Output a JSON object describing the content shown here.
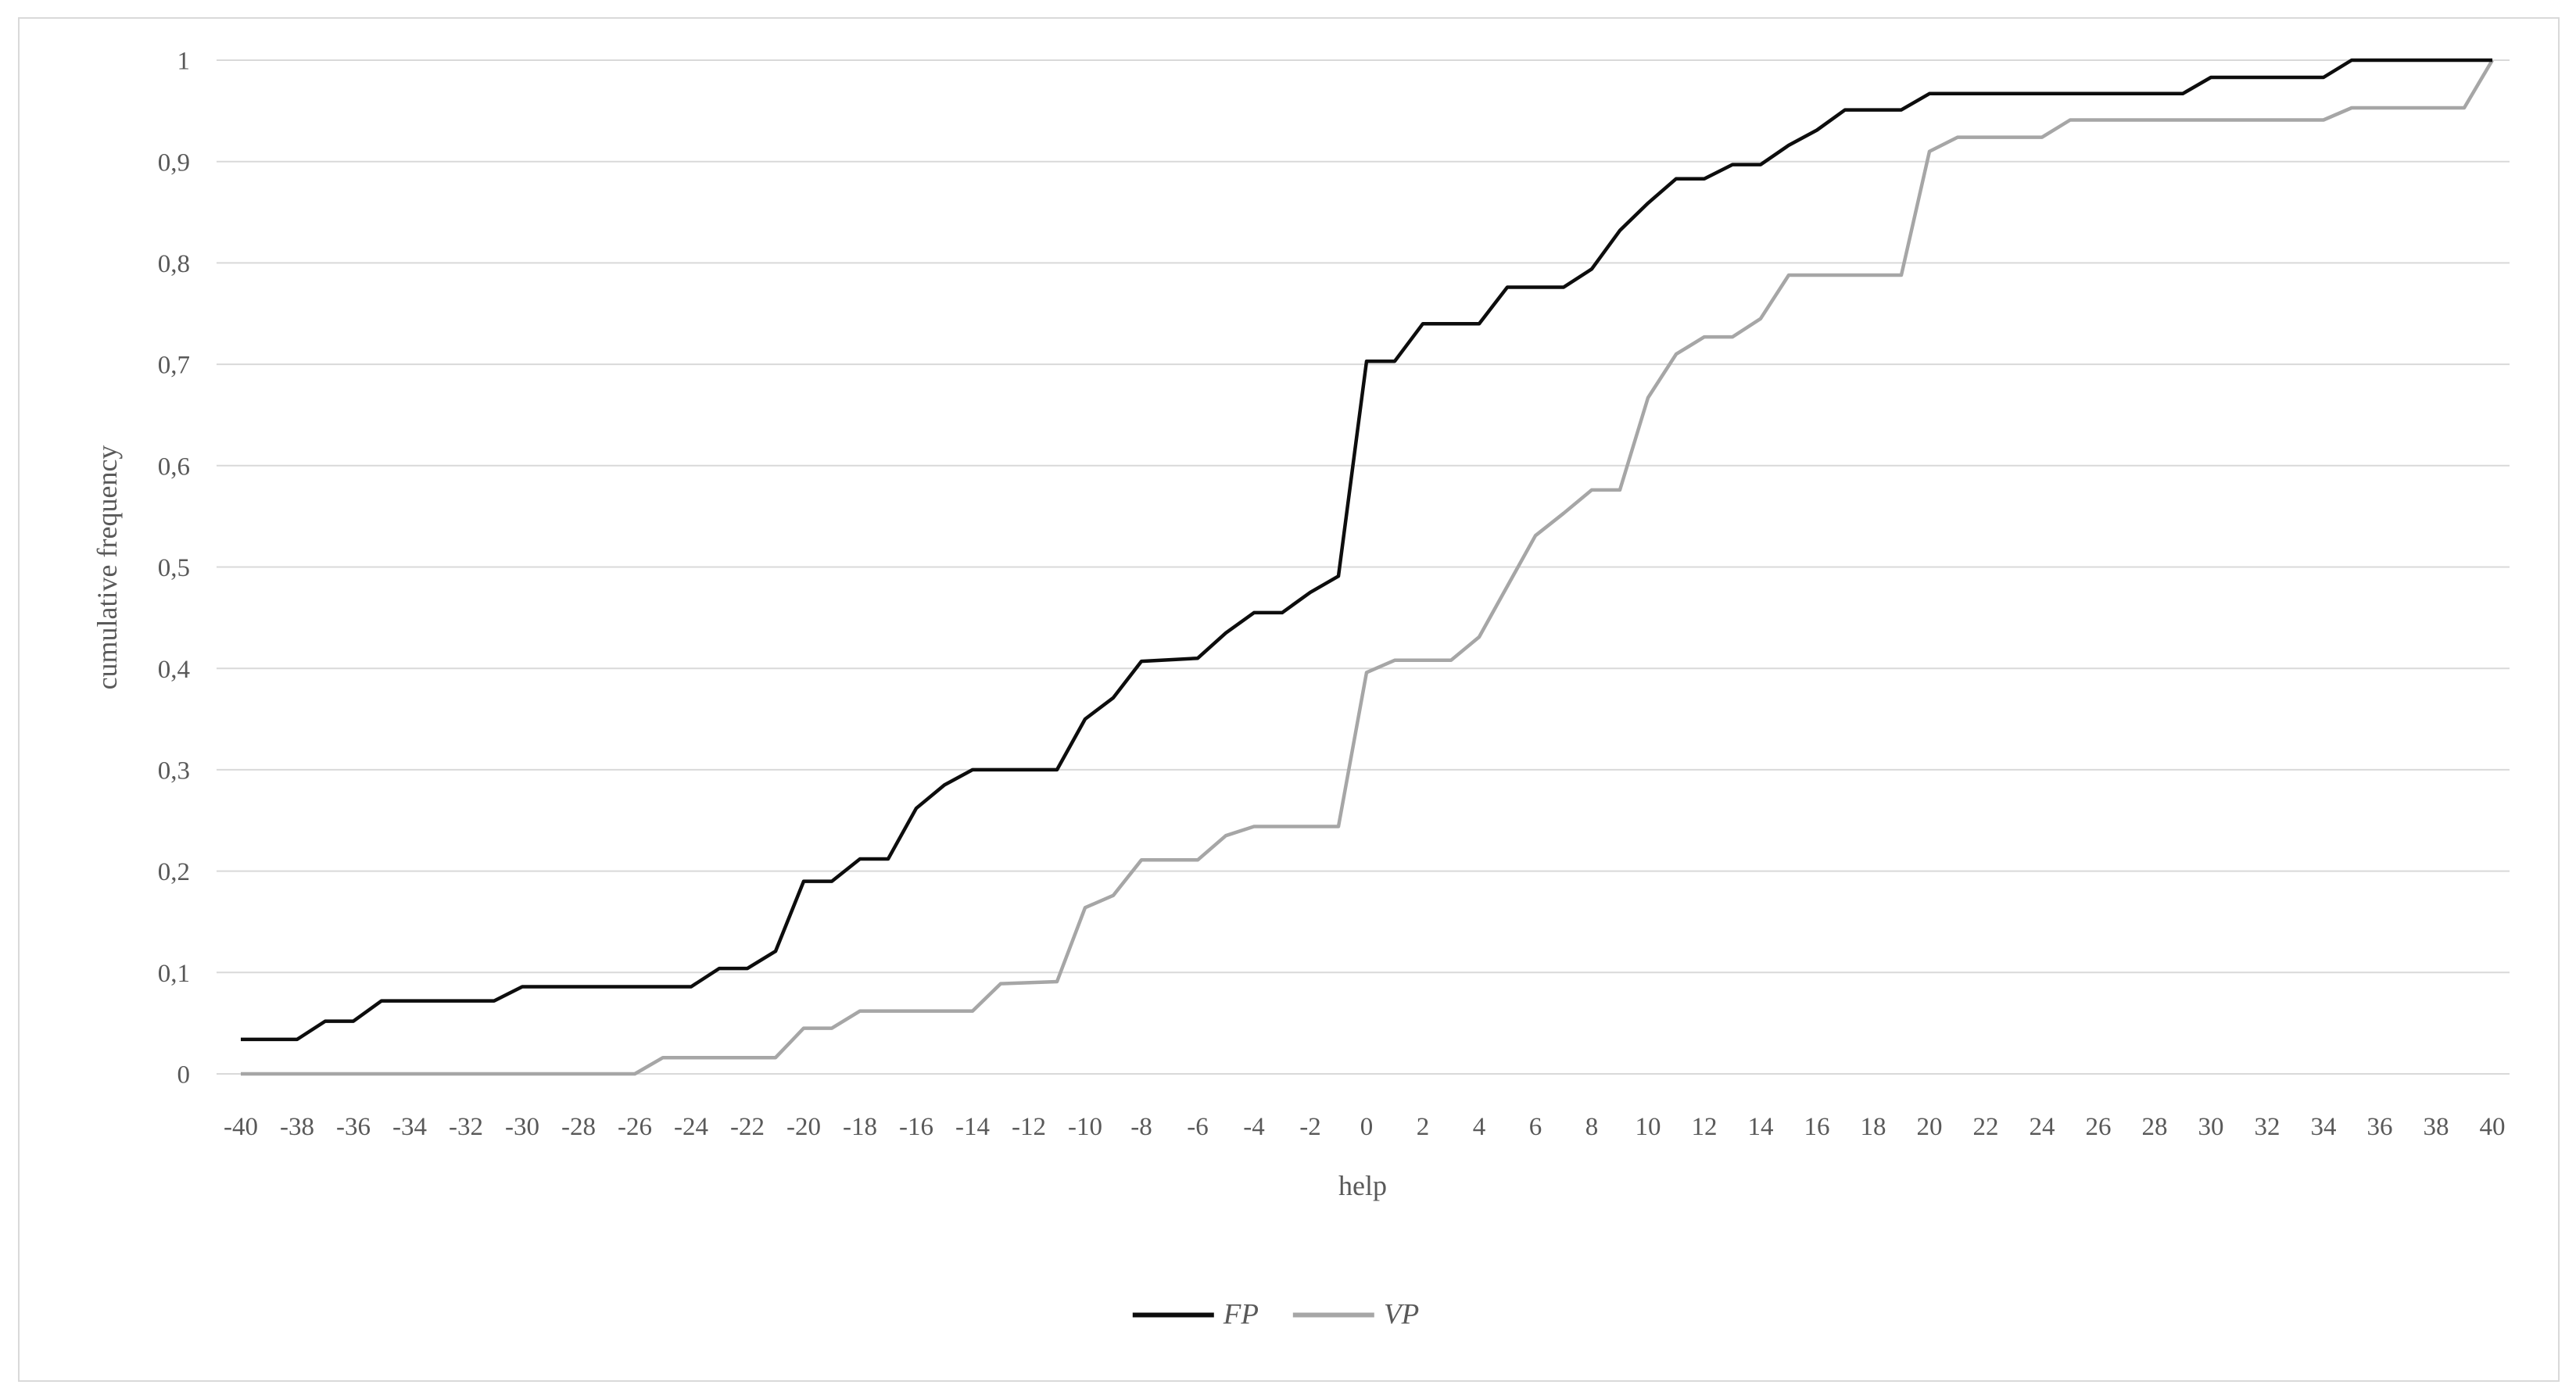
{
  "chart_data": {
    "type": "line",
    "title": "",
    "xlabel": "help",
    "ylabel": "cumulative frequency",
    "xlim": [
      -40,
      40
    ],
    "ylim": [
      0,
      1
    ],
    "grid": "horizontal-only",
    "legend_position": "bottom-center",
    "x_tick_step": 2,
    "x_tick_labels": [
      "-40",
      "-38",
      "-36",
      "-34",
      "-32",
      "-30",
      "-28",
      "-26",
      "-24",
      "-22",
      "-20",
      "-18",
      "-16",
      "-14",
      "-12",
      "-10",
      "-8",
      "-6",
      "-4",
      "-2",
      "0",
      "2",
      "4",
      "6",
      "8",
      "10",
      "12",
      "14",
      "16",
      "18",
      "20",
      "22",
      "24",
      "26",
      "28",
      "30",
      "32",
      "34",
      "36",
      "38",
      "40"
    ],
    "y_tick_labels": [
      "0",
      "0,1",
      "0,2",
      "0,3",
      "0,4",
      "0,5",
      "0,6",
      "0,7",
      "0,8",
      "0,9",
      "1"
    ],
    "colors": {
      "grid": "#d9d9d9",
      "frame": "#d9d9d9",
      "tick_text": "#595959",
      "fp": "#0d0d0d",
      "vp": "#a6a6a6"
    },
    "series": [
      {
        "name": "FP",
        "color": "#0d0d0d",
        "points": [
          [
            -40,
            0.034
          ],
          [
            -38,
            0.034
          ],
          [
            -37,
            0.052
          ],
          [
            -36,
            0.052
          ],
          [
            -35,
            0.072
          ],
          [
            -31,
            0.072
          ],
          [
            -30,
            0.086
          ],
          [
            -24,
            0.086
          ],
          [
            -23,
            0.104
          ],
          [
            -22,
            0.104
          ],
          [
            -21,
            0.121
          ],
          [
            -20,
            0.19
          ],
          [
            -19,
            0.19
          ],
          [
            -18,
            0.212
          ],
          [
            -17,
            0.212
          ],
          [
            -16,
            0.262
          ],
          [
            -15,
            0.285
          ],
          [
            -14,
            0.3
          ],
          [
            -11,
            0.3
          ],
          [
            -10,
            0.35
          ],
          [
            -9,
            0.371
          ],
          [
            -8,
            0.407
          ],
          [
            -6,
            0.41
          ],
          [
            -5,
            0.435
          ],
          [
            -4,
            0.455
          ],
          [
            -3,
            0.455
          ],
          [
            -2,
            0.475
          ],
          [
            -1,
            0.491
          ],
          [
            0,
            0.703
          ],
          [
            1,
            0.703
          ],
          [
            2,
            0.74
          ],
          [
            4,
            0.74
          ],
          [
            5,
            0.776
          ],
          [
            7,
            0.776
          ],
          [
            8,
            0.794
          ],
          [
            9,
            0.832
          ],
          [
            10,
            0.859
          ],
          [
            11,
            0.883
          ],
          [
            12,
            0.883
          ],
          [
            13,
            0.897
          ],
          [
            14,
            0.897
          ],
          [
            15,
            0.916
          ],
          [
            16,
            0.931
          ],
          [
            17,
            0.951
          ],
          [
            19,
            0.951
          ],
          [
            20,
            0.967
          ],
          [
            29,
            0.967
          ],
          [
            30,
            0.983
          ],
          [
            34,
            0.983
          ],
          [
            35,
            1
          ],
          [
            40,
            1
          ]
        ]
      },
      {
        "name": "VP",
        "color": "#a6a6a6",
        "points": [
          [
            -40,
            0
          ],
          [
            -26,
            0
          ],
          [
            -25,
            0.016
          ],
          [
            -21,
            0.016
          ],
          [
            -20,
            0.045
          ],
          [
            -19,
            0.045
          ],
          [
            -18,
            0.062
          ],
          [
            -14,
            0.062
          ],
          [
            -13,
            0.089
          ],
          [
            -11,
            0.091
          ],
          [
            -10,
            0.164
          ],
          [
            -9,
            0.176
          ],
          [
            -8,
            0.211
          ],
          [
            -6,
            0.211
          ],
          [
            -5,
            0.235
          ],
          [
            -4,
            0.244
          ],
          [
            -1,
            0.244
          ],
          [
            0,
            0.396
          ],
          [
            1,
            0.408
          ],
          [
            3,
            0.408
          ],
          [
            4,
            0.431
          ],
          [
            5,
            0.481
          ],
          [
            6,
            0.531
          ],
          [
            7,
            0.553
          ],
          [
            8,
            0.576
          ],
          [
            9,
            0.576
          ],
          [
            10,
            0.667
          ],
          [
            11,
            0.71
          ],
          [
            12,
            0.727
          ],
          [
            13,
            0.727
          ],
          [
            14,
            0.745
          ],
          [
            15,
            0.788
          ],
          [
            19,
            0.788
          ],
          [
            20,
            0.91
          ],
          [
            21,
            0.924
          ],
          [
            24,
            0.924
          ],
          [
            25,
            0.941
          ],
          [
            34,
            0.941
          ],
          [
            35,
            0.953
          ],
          [
            39,
            0.953
          ],
          [
            40,
            1
          ]
        ]
      }
    ]
  }
}
